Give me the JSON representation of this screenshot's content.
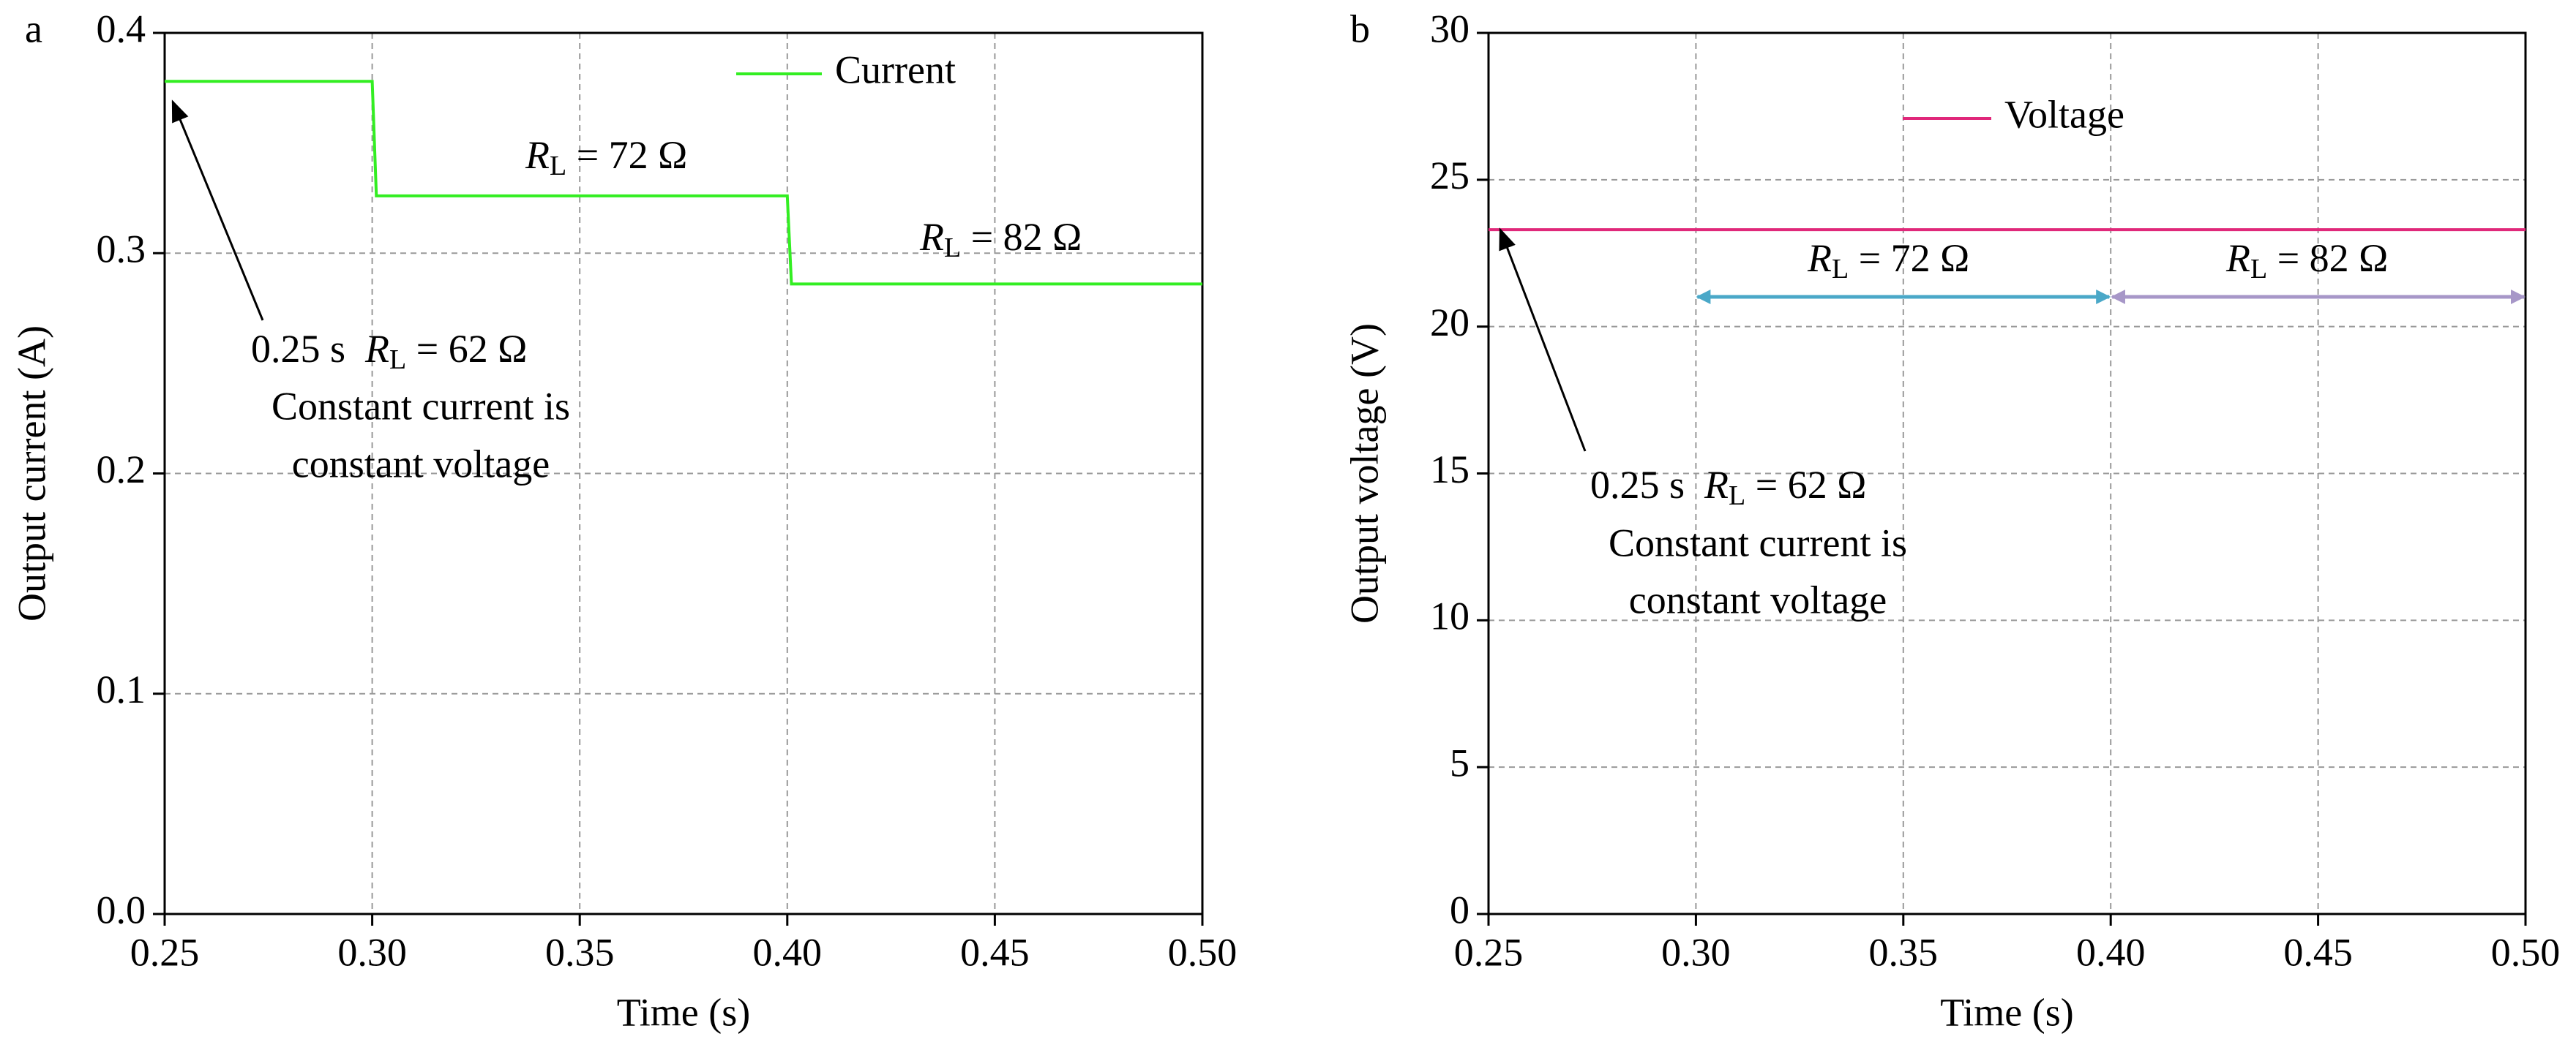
{
  "chart_data": [
    {
      "type": "line",
      "panel": "a",
      "xlabel": "Time (s)",
      "ylabel": "Output current (A)",
      "x": [
        0.25,
        0.3,
        0.301,
        0.4,
        0.401,
        0.5
      ],
      "series": [
        {
          "name": "Current",
          "color": "#33ee22",
          "values": [
            0.378,
            0.378,
            0.326,
            0.326,
            0.286,
            0.286
          ]
        }
      ],
      "xlim": [
        0.25,
        0.5
      ],
      "xticks": [
        0.25,
        {
          "value": 0.3,
          "label": "0.30"
        },
        0.35,
        {
          "value": 0.4,
          "label": "0.40"
        },
        0.45,
        {
          "value": 0.5,
          "label": "0.50"
        }
      ],
      "ylim": [
        0,
        0.4
      ],
      "yticks": [
        {
          "value": 0,
          "label": "0.0"
        },
        0.1,
        0.2,
        0.3,
        0.4
      ],
      "grid": true,
      "annotations": [
        {
          "italic": "R",
          "sub": "L",
          "text": " = 72 Ω"
        },
        {
          "italic": "R",
          "sub": "L",
          "text": " = 82 Ω"
        },
        {
          "prefix": "0.25 s  ",
          "italic": "R",
          "sub": "L",
          "text": " = 62 Ω",
          "lines": [
            "Constant current is",
            "constant voltage"
          ]
        }
      ]
    },
    {
      "type": "line",
      "panel": "b",
      "xlabel": "Time (s)",
      "ylabel": "Output voltage (V)",
      "x": [
        0.25,
        0.5
      ],
      "series": [
        {
          "name": "Voltage",
          "color": "#e0287a",
          "values": [
            23.3,
            23.3
          ]
        }
      ],
      "xlim": [
        0.25,
        0.5
      ],
      "xticks": [
        0.25,
        {
          "value": 0.3,
          "label": "0.30"
        },
        0.35,
        {
          "value": 0.4,
          "label": "0.40"
        },
        0.45,
        {
          "value": 0.5,
          "label": "0.50"
        }
      ],
      "ylim": [
        0,
        30
      ],
      "yticks": [
        0,
        5,
        10,
        15,
        20,
        25,
        30
      ],
      "grid": true,
      "annotations": [
        {
          "italic": "R",
          "sub": "L",
          "text": " = 72 Ω"
        },
        {
          "italic": "R",
          "sub": "L",
          "text": " = 82 Ω"
        },
        {
          "prefix": "0.25 s  ",
          "italic": "R",
          "sub": "L",
          "text": " = 62 Ω",
          "lines": [
            "Constant current is",
            "constant voltage"
          ]
        }
      ]
    }
  ]
}
